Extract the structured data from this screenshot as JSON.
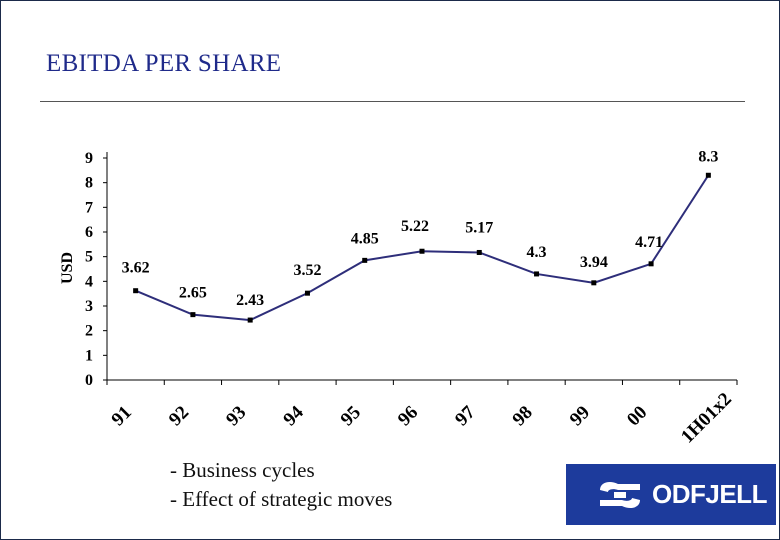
{
  "title": "EBITDA PER SHARE",
  "bullets": [
    "- Business cycles",
    "- Effect of strategic moves"
  ],
  "logo": {
    "text": "ODFJELL",
    "icon": "odfjell-logo-icon"
  },
  "colors": {
    "title": "#1f2a8a",
    "line": "#2e2e7a",
    "logo_bg": "#1d3b9c"
  },
  "chart_data": {
    "type": "line",
    "title": "",
    "xlabel": "",
    "ylabel": "USD",
    "categories": [
      "91",
      "92",
      "93",
      "94",
      "95",
      "96",
      "97",
      "98",
      "99",
      "00",
      "1H01x2"
    ],
    "values": [
      3.62,
      2.65,
      2.43,
      3.52,
      4.85,
      5.22,
      5.17,
      4.3,
      3.94,
      4.71,
      8.3
    ],
    "data_labels": [
      "3.62",
      "2.65",
      "2.43",
      "3.52",
      "4.85",
      "5.22",
      "5.17",
      "4.3",
      "3.94",
      "4.71",
      "8.3"
    ],
    "ylim": [
      0,
      9
    ],
    "yticks": [
      "0",
      "1",
      "2",
      "3",
      "4",
      "5",
      "6",
      "7",
      "8",
      "9"
    ],
    "grid": false,
    "legend": "none"
  }
}
